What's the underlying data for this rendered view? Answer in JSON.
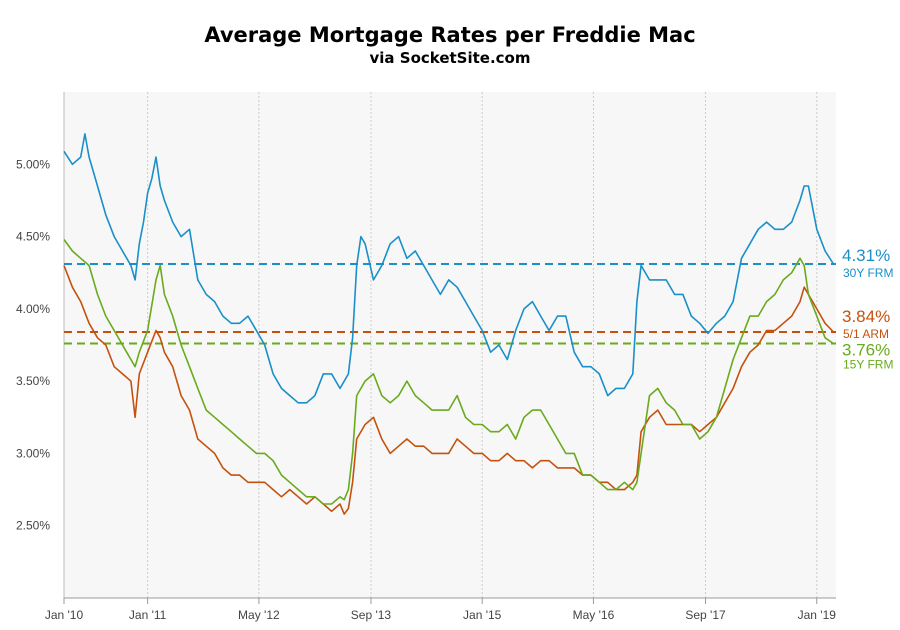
{
  "chart_data": {
    "type": "line",
    "title": "Average Mortgage Rates per Freddie Mac",
    "subtitle": "via SocketSite.com",
    "xlabel": "",
    "ylabel": "",
    "xlim": [
      2010.0,
      2019.23
    ],
    "ylim": [
      2.0,
      5.5
    ],
    "y_ticks": [
      {
        "value": 2.5,
        "label": "2.50%"
      },
      {
        "value": 3.0,
        "label": "3.00%"
      },
      {
        "value": 3.5,
        "label": "3.50%"
      },
      {
        "value": 4.0,
        "label": "4.00%"
      },
      {
        "value": 4.5,
        "label": "4.50%"
      },
      {
        "value": 5.0,
        "label": "5.00%"
      }
    ],
    "x_ticks": [
      {
        "value": 2010.0,
        "label": "Jan '10"
      },
      {
        "value": 2011.0,
        "label": "Jan '11"
      },
      {
        "value": 2012.33,
        "label": "May '12"
      },
      {
        "value": 2013.67,
        "label": "Sep '13"
      },
      {
        "value": 2015.0,
        "label": "Jan '15"
      },
      {
        "value": 2016.33,
        "label": "May '16"
      },
      {
        "value": 2017.67,
        "label": "Sep '17"
      },
      {
        "value": 2019.0,
        "label": "Jan '19"
      }
    ],
    "grid": {
      "vertical": true,
      "horizontal": false
    },
    "series": [
      {
        "name": "30Y FRM",
        "color": "#1a8fc9",
        "current": 4.31,
        "current_label": "4.31%",
        "x": [
          2010.0,
          2010.1,
          2010.2,
          2010.25,
          2010.3,
          2010.4,
          2010.5,
          2010.6,
          2010.7,
          2010.8,
          2010.85,
          2010.9,
          2010.95,
          2011.0,
          2011.05,
          2011.1,
          2011.15,
          2011.2,
          2011.3,
          2011.4,
          2011.5,
          2011.6,
          2011.7,
          2011.8,
          2011.9,
          2012.0,
          2012.1,
          2012.2,
          2012.3,
          2012.4,
          2012.5,
          2012.6,
          2012.7,
          2012.8,
          2012.9,
          2013.0,
          2013.1,
          2013.2,
          2013.3,
          2013.4,
          2013.45,
          2013.5,
          2013.55,
          2013.6,
          2013.7,
          2013.8,
          2013.9,
          2014.0,
          2014.1,
          2014.2,
          2014.3,
          2014.4,
          2014.5,
          2014.6,
          2014.7,
          2014.8,
          2014.9,
          2015.0,
          2015.1,
          2015.2,
          2015.3,
          2015.4,
          2015.5,
          2015.6,
          2015.7,
          2015.8,
          2015.9,
          2016.0,
          2016.1,
          2016.2,
          2016.3,
          2016.4,
          2016.5,
          2016.6,
          2016.7,
          2016.8,
          2016.85,
          2016.9,
          2017.0,
          2017.1,
          2017.2,
          2017.3,
          2017.4,
          2017.5,
          2017.6,
          2017.7,
          2017.8,
          2017.9,
          2018.0,
          2018.1,
          2018.2,
          2018.3,
          2018.4,
          2018.5,
          2018.6,
          2018.7,
          2018.8,
          2018.85,
          2018.9,
          2019.0,
          2019.1,
          2019.2
        ],
        "values": [
          5.09,
          5.0,
          5.05,
          5.21,
          5.05,
          4.85,
          4.65,
          4.5,
          4.4,
          4.3,
          4.2,
          4.45,
          4.6,
          4.8,
          4.9,
          5.05,
          4.85,
          4.75,
          4.6,
          4.5,
          4.55,
          4.2,
          4.1,
          4.05,
          3.95,
          3.9,
          3.9,
          3.95,
          3.85,
          3.75,
          3.55,
          3.45,
          3.4,
          3.35,
          3.35,
          3.4,
          3.55,
          3.55,
          3.45,
          3.55,
          3.8,
          4.3,
          4.5,
          4.45,
          4.2,
          4.3,
          4.45,
          4.5,
          4.35,
          4.4,
          4.3,
          4.2,
          4.1,
          4.2,
          4.15,
          4.05,
          3.95,
          3.85,
          3.7,
          3.75,
          3.65,
          3.85,
          4.0,
          4.05,
          3.95,
          3.85,
          3.95,
          3.95,
          3.7,
          3.6,
          3.6,
          3.55,
          3.4,
          3.45,
          3.45,
          3.55,
          4.05,
          4.3,
          4.2,
          4.2,
          4.2,
          4.1,
          4.1,
          3.95,
          3.9,
          3.83,
          3.9,
          3.95,
          4.05,
          4.35,
          4.45,
          4.55,
          4.6,
          4.55,
          4.55,
          4.6,
          4.75,
          4.85,
          4.85,
          4.55,
          4.4,
          4.31
        ]
      },
      {
        "name": "5/1 ARM",
        "color": "#c4520e",
        "current": 3.84,
        "current_label": "3.84%",
        "x": [
          2010.0,
          2010.1,
          2010.2,
          2010.3,
          2010.4,
          2010.5,
          2010.6,
          2010.7,
          2010.8,
          2010.85,
          2010.9,
          2011.0,
          2011.1,
          2011.15,
          2011.2,
          2011.3,
          2011.4,
          2011.5,
          2011.6,
          2011.7,
          2011.8,
          2011.9,
          2012.0,
          2012.1,
          2012.2,
          2012.3,
          2012.4,
          2012.5,
          2012.6,
          2012.7,
          2012.8,
          2012.9,
          2013.0,
          2013.1,
          2013.2,
          2013.3,
          2013.35,
          2013.4,
          2013.45,
          2013.5,
          2013.6,
          2013.7,
          2013.8,
          2013.9,
          2014.0,
          2014.1,
          2014.2,
          2014.3,
          2014.4,
          2014.5,
          2014.6,
          2014.7,
          2014.8,
          2014.9,
          2015.0,
          2015.1,
          2015.2,
          2015.3,
          2015.4,
          2015.5,
          2015.6,
          2015.7,
          2015.8,
          2015.9,
          2016.0,
          2016.1,
          2016.2,
          2016.3,
          2016.4,
          2016.5,
          2016.6,
          2016.7,
          2016.8,
          2016.85,
          2016.9,
          2017.0,
          2017.1,
          2017.2,
          2017.3,
          2017.4,
          2017.5,
          2017.6,
          2017.7,
          2017.8,
          2017.9,
          2018.0,
          2018.1,
          2018.2,
          2018.3,
          2018.4,
          2018.5,
          2018.6,
          2018.7,
          2018.8,
          2018.85,
          2018.9,
          2019.0,
          2019.1,
          2019.2
        ],
        "values": [
          4.3,
          4.15,
          4.05,
          3.9,
          3.8,
          3.75,
          3.6,
          3.55,
          3.5,
          3.25,
          3.55,
          3.7,
          3.85,
          3.8,
          3.7,
          3.6,
          3.4,
          3.3,
          3.1,
          3.05,
          3.0,
          2.9,
          2.85,
          2.85,
          2.8,
          2.8,
          2.8,
          2.75,
          2.7,
          2.75,
          2.7,
          2.65,
          2.7,
          2.65,
          2.6,
          2.65,
          2.58,
          2.62,
          2.8,
          3.1,
          3.2,
          3.25,
          3.1,
          3.0,
          3.05,
          3.1,
          3.05,
          3.05,
          3.0,
          3.0,
          3.0,
          3.1,
          3.05,
          3.0,
          3.0,
          2.95,
          2.95,
          3.0,
          2.95,
          2.95,
          2.9,
          2.95,
          2.95,
          2.9,
          2.9,
          2.9,
          2.85,
          2.85,
          2.8,
          2.8,
          2.75,
          2.75,
          2.8,
          2.85,
          3.15,
          3.25,
          3.3,
          3.2,
          3.2,
          3.2,
          3.2,
          3.15,
          3.2,
          3.25,
          3.35,
          3.45,
          3.6,
          3.7,
          3.75,
          3.85,
          3.85,
          3.9,
          3.95,
          4.05,
          4.15,
          4.1,
          4.0,
          3.9,
          3.84
        ]
      },
      {
        "name": "15Y FRM",
        "color": "#6aaa1e",
        "current": 3.76,
        "current_label": "3.76%",
        "x": [
          2010.0,
          2010.1,
          2010.2,
          2010.3,
          2010.4,
          2010.5,
          2010.6,
          2010.7,
          2010.8,
          2010.85,
          2010.9,
          2011.0,
          2011.1,
          2011.15,
          2011.2,
          2011.3,
          2011.4,
          2011.5,
          2011.6,
          2011.7,
          2011.8,
          2011.9,
          2012.0,
          2012.1,
          2012.2,
          2012.3,
          2012.4,
          2012.5,
          2012.6,
          2012.7,
          2012.8,
          2012.9,
          2013.0,
          2013.1,
          2013.2,
          2013.3,
          2013.35,
          2013.4,
          2013.45,
          2013.5,
          2013.6,
          2013.7,
          2013.8,
          2013.9,
          2014.0,
          2014.1,
          2014.2,
          2014.3,
          2014.4,
          2014.5,
          2014.6,
          2014.7,
          2014.8,
          2014.9,
          2015.0,
          2015.1,
          2015.2,
          2015.3,
          2015.4,
          2015.5,
          2015.6,
          2015.7,
          2015.8,
          2015.9,
          2016.0,
          2016.1,
          2016.2,
          2016.3,
          2016.4,
          2016.5,
          2016.6,
          2016.7,
          2016.8,
          2016.85,
          2016.9,
          2017.0,
          2017.1,
          2017.2,
          2017.3,
          2017.4,
          2017.5,
          2017.6,
          2017.7,
          2017.8,
          2017.9,
          2018.0,
          2018.1,
          2018.2,
          2018.3,
          2018.4,
          2018.5,
          2018.6,
          2018.7,
          2018.8,
          2018.85,
          2018.9,
          2019.0,
          2019.1,
          2019.2
        ],
        "values": [
          4.48,
          4.4,
          4.35,
          4.3,
          4.1,
          3.95,
          3.85,
          3.75,
          3.65,
          3.6,
          3.7,
          3.85,
          4.2,
          4.3,
          4.1,
          3.95,
          3.75,
          3.6,
          3.45,
          3.3,
          3.25,
          3.2,
          3.15,
          3.1,
          3.05,
          3.0,
          3.0,
          2.95,
          2.85,
          2.8,
          2.75,
          2.7,
          2.7,
          2.65,
          2.65,
          2.7,
          2.68,
          2.75,
          3.0,
          3.4,
          3.5,
          3.55,
          3.4,
          3.35,
          3.4,
          3.5,
          3.4,
          3.35,
          3.3,
          3.3,
          3.3,
          3.4,
          3.25,
          3.2,
          3.2,
          3.15,
          3.15,
          3.2,
          3.1,
          3.25,
          3.3,
          3.3,
          3.2,
          3.1,
          3.0,
          3.0,
          2.85,
          2.85,
          2.8,
          2.75,
          2.75,
          2.8,
          2.75,
          2.8,
          3.0,
          3.4,
          3.45,
          3.35,
          3.3,
          3.2,
          3.2,
          3.1,
          3.15,
          3.25,
          3.45,
          3.65,
          3.8,
          3.95,
          3.95,
          4.05,
          4.1,
          4.2,
          4.25,
          4.35,
          4.3,
          4.1,
          3.95,
          3.8,
          3.76
        ]
      }
    ],
    "reference_lines": [
      {
        "series": "30Y FRM",
        "value": 4.31,
        "style": "dashed"
      },
      {
        "series": "5/1 ARM",
        "value": 3.84,
        "style": "dashed"
      },
      {
        "series": "15Y FRM",
        "value": 3.76,
        "style": "dashed"
      }
    ],
    "background": "#f7f7f7",
    "gridline_color": "#cccccc"
  }
}
